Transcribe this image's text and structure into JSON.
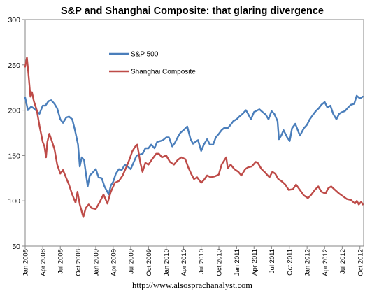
{
  "chart_data": {
    "type": "line",
    "title": "S&P and Shanghai Composite: that glaring divergence",
    "xlabel": "",
    "ylabel": "",
    "ylim": [
      50,
      300
    ],
    "yticks": [
      50,
      100,
      150,
      200,
      250,
      300
    ],
    "xlim": [
      "2008-01-01",
      "2012-10-20"
    ],
    "xticks": [
      "Jan 2008",
      "Apr 2008",
      "Jul 2008",
      "Oct 2008",
      "Jan 2009",
      "Apr 2009",
      "Jul 2009",
      "Oct 2009",
      "Jan 2010",
      "Apr 2010",
      "Jul 2010",
      "Oct 2010",
      "Jan 2011",
      "Apr 2011",
      "Jul 2011",
      "Oct 2011",
      "Jan 2012",
      "Apr 2012",
      "Jul 2012",
      "Oct 2012"
    ],
    "grid": false,
    "legend": "upper-left inside plot",
    "series": [
      {
        "name": "S&P 500",
        "color": "#4A7EBB",
        "points": [
          [
            "2008-01-01",
            214
          ],
          [
            "2008-01-15",
            200
          ],
          [
            "2008-02-01",
            204
          ],
          [
            "2008-02-15",
            202
          ],
          [
            "2008-03-01",
            199
          ],
          [
            "2008-03-15",
            196
          ],
          [
            "2008-04-01",
            205
          ],
          [
            "2008-04-15",
            205
          ],
          [
            "2008-05-01",
            210
          ],
          [
            "2008-05-15",
            211
          ],
          [
            "2008-06-01",
            207
          ],
          [
            "2008-06-15",
            202
          ],
          [
            "2008-07-01",
            190
          ],
          [
            "2008-07-15",
            186
          ],
          [
            "2008-08-01",
            192
          ],
          [
            "2008-08-15",
            193
          ],
          [
            "2008-09-01",
            190
          ],
          [
            "2008-09-15",
            178
          ],
          [
            "2008-10-01",
            162
          ],
          [
            "2008-10-10",
            138
          ],
          [
            "2008-10-20",
            148
          ],
          [
            "2008-11-01",
            145
          ],
          [
            "2008-11-20",
            116
          ],
          [
            "2008-12-01",
            128
          ],
          [
            "2008-12-15",
            131
          ],
          [
            "2009-01-01",
            135
          ],
          [
            "2009-01-15",
            126
          ],
          [
            "2009-02-01",
            125
          ],
          [
            "2009-02-15",
            116
          ],
          [
            "2009-03-09",
            107
          ],
          [
            "2009-03-20",
            117
          ],
          [
            "2009-04-01",
            121
          ],
          [
            "2009-04-15",
            130
          ],
          [
            "2009-05-01",
            135
          ],
          [
            "2009-05-15",
            134
          ],
          [
            "2009-06-01",
            140
          ],
          [
            "2009-06-15",
            138
          ],
          [
            "2009-07-01",
            135
          ],
          [
            "2009-07-15",
            142
          ],
          [
            "2009-08-01",
            150
          ],
          [
            "2009-08-15",
            151
          ],
          [
            "2009-09-01",
            152
          ],
          [
            "2009-09-15",
            158
          ],
          [
            "2009-10-01",
            158
          ],
          [
            "2009-10-15",
            162
          ],
          [
            "2009-11-01",
            158
          ],
          [
            "2009-11-15",
            165
          ],
          [
            "2009-12-01",
            166
          ],
          [
            "2009-12-15",
            167
          ],
          [
            "2010-01-01",
            170
          ],
          [
            "2010-01-15",
            170
          ],
          [
            "2010-02-01",
            160
          ],
          [
            "2010-02-15",
            164
          ],
          [
            "2010-03-01",
            170
          ],
          [
            "2010-03-15",
            175
          ],
          [
            "2010-04-01",
            178
          ],
          [
            "2010-04-20",
            182
          ],
          [
            "2010-05-07",
            168
          ],
          [
            "2010-05-20",
            163
          ],
          [
            "2010-06-01",
            165
          ],
          [
            "2010-06-15",
            167
          ],
          [
            "2010-07-01",
            155
          ],
          [
            "2010-07-15",
            162
          ],
          [
            "2010-08-01",
            168
          ],
          [
            "2010-08-15",
            162
          ],
          [
            "2010-09-01",
            162
          ],
          [
            "2010-09-15",
            170
          ],
          [
            "2010-10-01",
            174
          ],
          [
            "2010-10-15",
            178
          ],
          [
            "2010-11-01",
            181
          ],
          [
            "2010-11-15",
            180
          ],
          [
            "2010-12-01",
            184
          ],
          [
            "2010-12-15",
            188
          ],
          [
            "2011-01-01",
            190
          ],
          [
            "2011-01-15",
            193
          ],
          [
            "2011-02-01",
            196
          ],
          [
            "2011-02-18",
            200
          ],
          [
            "2011-03-01",
            196
          ],
          [
            "2011-03-16",
            190
          ],
          [
            "2011-04-01",
            198
          ],
          [
            "2011-04-29",
            201
          ],
          [
            "2011-05-15",
            198
          ],
          [
            "2011-06-01",
            195
          ],
          [
            "2011-06-15",
            190
          ],
          [
            "2011-07-01",
            199
          ],
          [
            "2011-07-15",
            196
          ],
          [
            "2011-08-01",
            188
          ],
          [
            "2011-08-08",
            168
          ],
          [
            "2011-08-20",
            172
          ],
          [
            "2011-09-01",
            178
          ],
          [
            "2011-09-20",
            170
          ],
          [
            "2011-10-03",
            166
          ],
          [
            "2011-10-15",
            180
          ],
          [
            "2011-11-01",
            185
          ],
          [
            "2011-11-25",
            172
          ],
          [
            "2011-12-15",
            180
          ],
          [
            "2012-01-01",
            184
          ],
          [
            "2012-01-15",
            190
          ],
          [
            "2012-02-01",
            195
          ],
          [
            "2012-02-15",
            199
          ],
          [
            "2012-03-01",
            202
          ],
          [
            "2012-03-15",
            206
          ],
          [
            "2012-04-01",
            209
          ],
          [
            "2012-04-15",
            203
          ],
          [
            "2012-05-01",
            205
          ],
          [
            "2012-05-15",
            196
          ],
          [
            "2012-06-01",
            190
          ],
          [
            "2012-06-15",
            196
          ],
          [
            "2012-07-01",
            198
          ],
          [
            "2012-07-15",
            199
          ],
          [
            "2012-08-01",
            203
          ],
          [
            "2012-08-15",
            206
          ],
          [
            "2012-09-01",
            207
          ],
          [
            "2012-09-14",
            216
          ],
          [
            "2012-10-01",
            213
          ],
          [
            "2012-10-15",
            215
          ]
        ]
      },
      {
        "name": "Shanghai Composite",
        "color": "#BE4B48",
        "points": [
          [
            "2008-01-01",
            248
          ],
          [
            "2008-01-10",
            258
          ],
          [
            "2008-01-18",
            240
          ],
          [
            "2008-01-28",
            215
          ],
          [
            "2008-02-05",
            220
          ],
          [
            "2008-02-15",
            210
          ],
          [
            "2008-03-01",
            200
          ],
          [
            "2008-03-15",
            183
          ],
          [
            "2008-04-01",
            165
          ],
          [
            "2008-04-10",
            160
          ],
          [
            "2008-04-18",
            148
          ],
          [
            "2008-04-25",
            165
          ],
          [
            "2008-05-05",
            174
          ],
          [
            "2008-05-15",
            168
          ],
          [
            "2008-06-01",
            157
          ],
          [
            "2008-06-15",
            140
          ],
          [
            "2008-07-01",
            130
          ],
          [
            "2008-07-15",
            134
          ],
          [
            "2008-08-01",
            125
          ],
          [
            "2008-08-15",
            118
          ],
          [
            "2008-09-01",
            107
          ],
          [
            "2008-09-18",
            98
          ],
          [
            "2008-09-28",
            110
          ],
          [
            "2008-10-10",
            96
          ],
          [
            "2008-10-28",
            82
          ],
          [
            "2008-11-10",
            92
          ],
          [
            "2008-11-25",
            96
          ],
          [
            "2008-12-10",
            92
          ],
          [
            "2009-01-01",
            91
          ],
          [
            "2009-01-20",
            98
          ],
          [
            "2009-02-10",
            107
          ],
          [
            "2009-03-02",
            97
          ],
          [
            "2009-03-20",
            110
          ],
          [
            "2009-04-10",
            120
          ],
          [
            "2009-05-01",
            122
          ],
          [
            "2009-05-20",
            128
          ],
          [
            "2009-06-10",
            138
          ],
          [
            "2009-06-25",
            146
          ],
          [
            "2009-07-10",
            155
          ],
          [
            "2009-07-25",
            160
          ],
          [
            "2009-08-04",
            162
          ],
          [
            "2009-08-20",
            142
          ],
          [
            "2009-08-31",
            132
          ],
          [
            "2009-09-15",
            142
          ],
          [
            "2009-10-01",
            140
          ],
          [
            "2009-10-20",
            146
          ],
          [
            "2009-11-10",
            152
          ],
          [
            "2009-11-24",
            152
          ],
          [
            "2009-12-10",
            148
          ],
          [
            "2010-01-01",
            150
          ],
          [
            "2010-01-20",
            143
          ],
          [
            "2010-02-10",
            140
          ],
          [
            "2010-03-01",
            145
          ],
          [
            "2010-03-20",
            148
          ],
          [
            "2010-04-10",
            146
          ],
          [
            "2010-04-25",
            137
          ],
          [
            "2010-05-10",
            130
          ],
          [
            "2010-05-25",
            124
          ],
          [
            "2010-06-10",
            126
          ],
          [
            "2010-07-01",
            120
          ],
          [
            "2010-07-15",
            123
          ],
          [
            "2010-08-01",
            128
          ],
          [
            "2010-08-20",
            126
          ],
          [
            "2010-09-10",
            127
          ],
          [
            "2010-09-30",
            129
          ],
          [
            "2010-10-15",
            140
          ],
          [
            "2010-11-08",
            148
          ],
          [
            "2010-11-16",
            136
          ],
          [
            "2010-12-01",
            140
          ],
          [
            "2010-12-20",
            135
          ],
          [
            "2011-01-10",
            132
          ],
          [
            "2011-01-25",
            128
          ],
          [
            "2011-02-15",
            135
          ],
          [
            "2011-03-01",
            137
          ],
          [
            "2011-03-20",
            138
          ],
          [
            "2011-04-10",
            143
          ],
          [
            "2011-04-20",
            142
          ],
          [
            "2011-05-10",
            135
          ],
          [
            "2011-05-25",
            132
          ],
          [
            "2011-06-20",
            126
          ],
          [
            "2011-07-05",
            132
          ],
          [
            "2011-07-20",
            130
          ],
          [
            "2011-08-05",
            124
          ],
          [
            "2011-08-20",
            122
          ],
          [
            "2011-09-10",
            118
          ],
          [
            "2011-09-28",
            112
          ],
          [
            "2011-10-20",
            113
          ],
          [
            "2011-11-05",
            118
          ],
          [
            "2011-11-25",
            112
          ],
          [
            "2011-12-15",
            106
          ],
          [
            "2012-01-05",
            103
          ],
          [
            "2012-01-20",
            106
          ],
          [
            "2012-02-10",
            112
          ],
          [
            "2012-02-28",
            116
          ],
          [
            "2012-03-15",
            110
          ],
          [
            "2012-04-05",
            108
          ],
          [
            "2012-04-20",
            114
          ],
          [
            "2012-05-05",
            116
          ],
          [
            "2012-05-25",
            112
          ],
          [
            "2012-06-15",
            108
          ],
          [
            "2012-07-05",
            105
          ],
          [
            "2012-07-25",
            102
          ],
          [
            "2012-08-15",
            101
          ],
          [
            "2012-09-05",
            97
          ],
          [
            "2012-09-15",
            100
          ],
          [
            "2012-09-25",
            96
          ],
          [
            "2012-10-08",
            99
          ],
          [
            "2012-10-15",
            96
          ]
        ]
      }
    ]
  },
  "footer": {
    "url": "http://www.alsosprachanalyst.com"
  }
}
